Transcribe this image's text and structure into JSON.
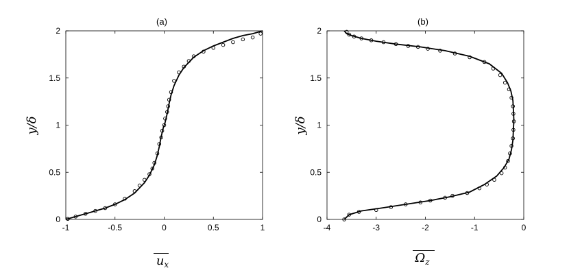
{
  "chart_data": [
    {
      "type": "line",
      "title": "(a)",
      "xlabel": "u_x",
      "ylabel": "y/δ",
      "xlim": [
        -1,
        1
      ],
      "ylim": [
        0,
        2
      ],
      "xticks": [
        "-1",
        "-0.5",
        "0",
        "0.5",
        "1"
      ],
      "yticks": [
        "0",
        "0.5",
        "1",
        "1.5",
        "2"
      ],
      "grid": false,
      "series": [
        {
          "style": "solid-line",
          "points": [
            [
              -1.0,
              0.0
            ],
            [
              -0.9,
              0.03
            ],
            [
              -0.8,
              0.06
            ],
            [
              -0.7,
              0.09
            ],
            [
              -0.6,
              0.12
            ],
            [
              -0.5,
              0.16
            ],
            [
              -0.4,
              0.21
            ],
            [
              -0.3,
              0.28
            ],
            [
              -0.2,
              0.39
            ],
            [
              -0.15,
              0.47
            ],
            [
              -0.1,
              0.58
            ],
            [
              -0.07,
              0.68
            ],
            [
              -0.05,
              0.77
            ],
            [
              -0.03,
              0.88
            ],
            [
              -0.01,
              0.97
            ],
            [
              0.01,
              1.03
            ],
            [
              0.03,
              1.12
            ],
            [
              0.05,
              1.23
            ],
            [
              0.07,
              1.32
            ],
            [
              0.1,
              1.42
            ],
            [
              0.15,
              1.53
            ],
            [
              0.2,
              1.61
            ],
            [
              0.3,
              1.72
            ],
            [
              0.4,
              1.79
            ],
            [
              0.5,
              1.84
            ],
            [
              0.6,
              1.88
            ],
            [
              0.7,
              1.92
            ],
            [
              0.8,
              1.95
            ],
            [
              0.9,
              1.97
            ],
            [
              1.0,
              2.0
            ]
          ]
        },
        {
          "style": "open-circles",
          "points": [
            [
              -0.98,
              0.005
            ],
            [
              -0.9,
              0.03
            ],
            [
              -0.8,
              0.06
            ],
            [
              -0.7,
              0.09
            ],
            [
              -0.6,
              0.12
            ],
            [
              -0.5,
              0.16
            ],
            [
              -0.4,
              0.22
            ],
            [
              -0.3,
              0.3
            ],
            [
              -0.25,
              0.36
            ],
            [
              -0.2,
              0.42
            ],
            [
              -0.15,
              0.48
            ],
            [
              -0.12,
              0.54
            ],
            [
              -0.1,
              0.6
            ],
            [
              -0.07,
              0.7
            ],
            [
              -0.05,
              0.8
            ],
            [
              -0.03,
              0.87
            ],
            [
              -0.02,
              0.94
            ],
            [
              0.0,
              1.0
            ],
            [
              0.01,
              1.07
            ],
            [
              0.03,
              1.14
            ],
            [
              0.04,
              1.2
            ],
            [
              0.05,
              1.27
            ],
            [
              0.07,
              1.35
            ],
            [
              0.1,
              1.47
            ],
            [
              0.15,
              1.56
            ],
            [
              0.2,
              1.62
            ],
            [
              0.25,
              1.68
            ],
            [
              0.3,
              1.73
            ],
            [
              0.4,
              1.78
            ],
            [
              0.5,
              1.82
            ],
            [
              0.6,
              1.85
            ],
            [
              0.7,
              1.88
            ],
            [
              0.8,
              1.91
            ],
            [
              0.9,
              1.93
            ],
            [
              0.98,
              1.97
            ]
          ]
        }
      ]
    },
    {
      "type": "line",
      "title": "(b)",
      "xlabel": "Ω_z",
      "ylabel": "y/δ",
      "xlim": [
        -4,
        0
      ],
      "ylim": [
        0,
        2
      ],
      "xticks": [
        "-4",
        "-3",
        "-2",
        "-1",
        "0"
      ],
      "yticks": [
        "0",
        "0.5",
        "1",
        "1.5",
        "2"
      ],
      "grid": false,
      "series": [
        {
          "style": "solid-line",
          "points": [
            [
              -3.65,
              0.0
            ],
            [
              -3.55,
              0.05
            ],
            [
              -3.3,
              0.09
            ],
            [
              -2.9,
              0.12
            ],
            [
              -2.4,
              0.16
            ],
            [
              -1.9,
              0.2
            ],
            [
              -1.5,
              0.24
            ],
            [
              -1.1,
              0.29
            ],
            [
              -0.8,
              0.37
            ],
            [
              -0.55,
              0.46
            ],
            [
              -0.4,
              0.55
            ],
            [
              -0.3,
              0.64
            ],
            [
              -0.25,
              0.74
            ],
            [
              -0.22,
              0.84
            ],
            [
              -0.21,
              0.95
            ],
            [
              -0.2,
              1.05
            ],
            [
              -0.21,
              1.16
            ],
            [
              -0.22,
              1.26
            ],
            [
              -0.26,
              1.36
            ],
            [
              -0.33,
              1.45
            ],
            [
              -0.45,
              1.55
            ],
            [
              -0.7,
              1.65
            ],
            [
              -1.1,
              1.73
            ],
            [
              -1.6,
              1.79
            ],
            [
              -2.1,
              1.83
            ],
            [
              -2.6,
              1.86
            ],
            [
              -3.0,
              1.89
            ],
            [
              -3.3,
              1.92
            ],
            [
              -3.5,
              1.95
            ],
            [
              -3.6,
              1.97
            ],
            [
              -3.65,
              2.0
            ]
          ]
        },
        {
          "style": "open-circles",
          "points": [
            [
              -3.65,
              0.0
            ],
            [
              -3.55,
              0.05
            ],
            [
              -3.35,
              0.08
            ],
            [
              -3.0,
              0.1
            ],
            [
              -2.7,
              0.13
            ],
            [
              -2.4,
              0.16
            ],
            [
              -2.1,
              0.18
            ],
            [
              -1.9,
              0.2
            ],
            [
              -1.6,
              0.23
            ],
            [
              -1.45,
              0.25
            ],
            [
              -1.15,
              0.28
            ],
            [
              -0.9,
              0.33
            ],
            [
              -0.75,
              0.37
            ],
            [
              -0.6,
              0.42
            ],
            [
              -0.45,
              0.49
            ],
            [
              -0.38,
              0.55
            ],
            [
              -0.32,
              0.62
            ],
            [
              -0.28,
              0.7
            ],
            [
              -0.25,
              0.78
            ],
            [
              -0.22,
              0.86
            ],
            [
              -0.21,
              0.95
            ],
            [
              -0.2,
              1.04
            ],
            [
              -0.21,
              1.12
            ],
            [
              -0.22,
              1.2
            ],
            [
              -0.25,
              1.29
            ],
            [
              -0.3,
              1.38
            ],
            [
              -0.38,
              1.45
            ],
            [
              -0.48,
              1.53
            ],
            [
              -0.62,
              1.6
            ],
            [
              -0.8,
              1.67
            ],
            [
              -1.1,
              1.72
            ],
            [
              -1.4,
              1.76
            ],
            [
              -1.7,
              1.79
            ],
            [
              -1.95,
              1.81
            ],
            [
              -2.15,
              1.83
            ],
            [
              -2.35,
              1.84
            ],
            [
              -2.6,
              1.86
            ],
            [
              -2.85,
              1.88
            ],
            [
              -3.1,
              1.9
            ],
            [
              -3.3,
              1.92
            ],
            [
              -3.45,
              1.94
            ],
            [
              -3.55,
              1.96
            ],
            [
              -3.6,
              1.99
            ]
          ]
        }
      ]
    }
  ]
}
